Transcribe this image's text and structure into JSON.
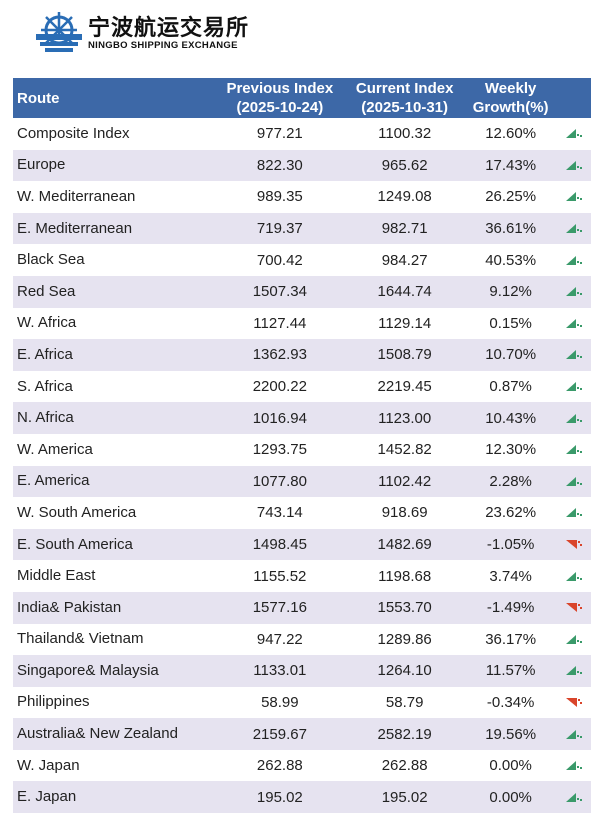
{
  "logo": {
    "cn": "宁波航运交易所",
    "en": "NINGBO SHIPPING EXCHANGE"
  },
  "colors": {
    "header": "#3d68a7",
    "alt_row": "#e6e3f0",
    "up": "#3a9a6a",
    "down": "#d9452b"
  },
  "headers": {
    "route": "Route",
    "previous": "Previous Index\n(2025-10-24)",
    "previous_l1": "Previous Index",
    "previous_l2": "(2025-10-24)",
    "current_l1": "Current Index",
    "current_l2": "(2025-10-31)",
    "growth_l1": "Weekly",
    "growth_l2": "Growth(%)"
  },
  "rows": [
    {
      "route": "Composite Index",
      "prev": "977.21",
      "curr": "1100.32",
      "growth": "12.60%",
      "trend": "up"
    },
    {
      "route": "Europe",
      "prev": "822.30",
      "curr": "965.62",
      "growth": "17.43%",
      "trend": "up"
    },
    {
      "route": "W. Mediterranean",
      "prev": "989.35",
      "curr": "1249.08",
      "growth": "26.25%",
      "trend": "up"
    },
    {
      "route": "E. Mediterranean",
      "prev": "719.37",
      "curr": "982.71",
      "growth": "36.61%",
      "trend": "up"
    },
    {
      "route": "Black Sea",
      "prev": "700.42",
      "curr": "984.27",
      "growth": "40.53%",
      "trend": "up"
    },
    {
      "route": "Red Sea",
      "prev": "1507.34",
      "curr": "1644.74",
      "growth": "9.12%",
      "trend": "up"
    },
    {
      "route": "W. Africa",
      "prev": "1127.44",
      "curr": "1129.14",
      "growth": "0.15%",
      "trend": "up"
    },
    {
      "route": "E. Africa",
      "prev": "1362.93",
      "curr": "1508.79",
      "growth": "10.70%",
      "trend": "up"
    },
    {
      "route": "S. Africa",
      "prev": "2200.22",
      "curr": "2219.45",
      "growth": "0.87%",
      "trend": "up"
    },
    {
      "route": "N. Africa",
      "prev": "1016.94",
      "curr": "1123.00",
      "growth": "10.43%",
      "trend": "up"
    },
    {
      "route": "W. America",
      "prev": "1293.75",
      "curr": "1452.82",
      "growth": "12.30%",
      "trend": "up"
    },
    {
      "route": "E. America",
      "prev": "1077.80",
      "curr": "1102.42",
      "growth": "2.28%",
      "trend": "up"
    },
    {
      "route": "W. South America",
      "prev": "743.14",
      "curr": "918.69",
      "growth": "23.62%",
      "trend": "up"
    },
    {
      "route": "E. South America",
      "prev": "1498.45",
      "curr": "1482.69",
      "growth": "-1.05%",
      "trend": "down"
    },
    {
      "route": "Middle East",
      "prev": "1155.52",
      "curr": "1198.68",
      "growth": "3.74%",
      "trend": "up"
    },
    {
      "route": "India& Pakistan",
      "prev": "1577.16",
      "curr": "1553.70",
      "growth": "-1.49%",
      "trend": "down"
    },
    {
      "route": "Thailand& Vietnam",
      "prev": "947.22",
      "curr": "1289.86",
      "growth": "36.17%",
      "trend": "up"
    },
    {
      "route": "Singapore& Malaysia",
      "prev": "1133.01",
      "curr": "1264.10",
      "growth": "11.57%",
      "trend": "up"
    },
    {
      "route": "Philippines",
      "prev": "58.99",
      "curr": "58.79",
      "growth": "-0.34%",
      "trend": "down"
    },
    {
      "route": "Australia& New Zealand",
      "prev": "2159.67",
      "curr": "2582.19",
      "growth": "19.56%",
      "trend": "up"
    },
    {
      "route": "W. Japan",
      "prev": "262.88",
      "curr": "262.88",
      "growth": "0.00%",
      "trend": "up"
    },
    {
      "route": "E. Japan",
      "prev": "195.02",
      "curr": "195.02",
      "growth": "0.00%",
      "trend": "up"
    }
  ]
}
